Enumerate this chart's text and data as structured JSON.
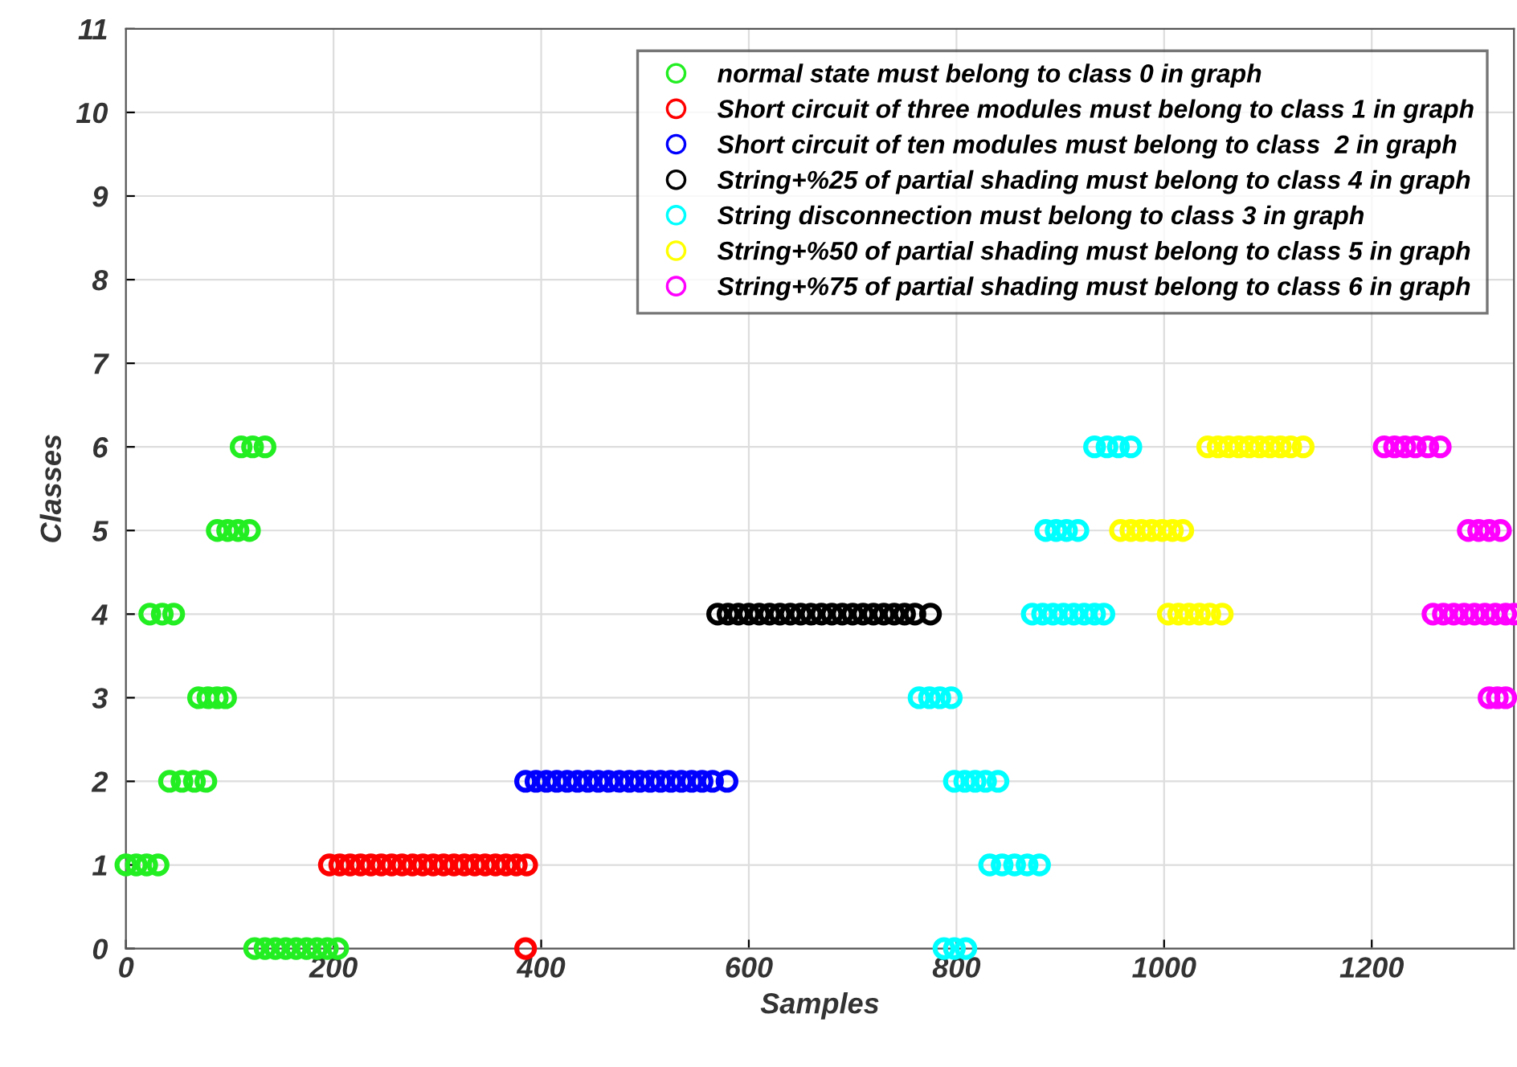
{
  "chart_data": {
    "type": "scatter",
    "xlabel": "Samples",
    "ylabel": "Classes",
    "xlim": [
      0,
      1337
    ],
    "ylim": [
      0,
      11
    ],
    "xticks": [
      0,
      200,
      400,
      600,
      800,
      1000,
      1200
    ],
    "yticks": [
      0,
      1,
      2,
      3,
      4,
      5,
      6,
      7,
      8,
      9,
      10,
      11
    ],
    "grid": true,
    "legend": "top right",
    "marker": "circle",
    "series": [
      {
        "name": "normal state must belong to class 0 in graph",
        "color": "#22ee22",
        "x": [
          0,
          10,
          20,
          31,
          42,
          54,
          66,
          77,
          70,
          79,
          88,
          96,
          23,
          35,
          46,
          88,
          98,
          108,
          119,
          111,
          122,
          134,
          124,
          134,
          144,
          154,
          164,
          174,
          184,
          194,
          204
        ],
        "values": [
          1,
          1,
          1,
          1,
          2,
          2,
          2,
          2,
          3,
          3,
          3,
          3,
          4,
          4,
          4,
          5,
          5,
          5,
          5,
          6,
          6,
          6,
          0,
          0,
          0,
          0,
          0,
          0,
          0,
          0,
          0
        ]
      },
      {
        "name": "Short circuit of three modules must belong to class 1 in graph",
        "color": "#ff0000",
        "x": [
          196,
          206,
          216,
          226,
          236,
          246,
          256,
          266,
          276,
          286,
          296,
          306,
          316,
          326,
          336,
          346,
          356,
          366,
          376,
          386,
          385
        ],
        "values": [
          1,
          1,
          1,
          1,
          1,
          1,
          1,
          1,
          1,
          1,
          1,
          1,
          1,
          1,
          1,
          1,
          1,
          1,
          1,
          1,
          0
        ]
      },
      {
        "name": "Short circuit of ten modules must belong to class  2 in graph",
        "color": "#0000ff",
        "x": [
          385,
          395,
          405,
          415,
          425,
          435,
          445,
          455,
          465,
          475,
          485,
          495,
          505,
          515,
          525,
          535,
          545,
          555,
          565,
          579
        ],
        "values": [
          2,
          2,
          2,
          2,
          2,
          2,
          2,
          2,
          2,
          2,
          2,
          2,
          2,
          2,
          2,
          2,
          2,
          2,
          2,
          2
        ]
      },
      {
        "name": "String+%25 of partial shading must belong to class 4 in graph",
        "color": "#000000",
        "x": [
          570,
          580,
          590,
          600,
          610,
          620,
          630,
          640,
          650,
          660,
          670,
          680,
          690,
          700,
          710,
          720,
          730,
          740,
          750,
          760,
          775
        ],
        "values": [
          4,
          4,
          4,
          4,
          4,
          4,
          4,
          4,
          4,
          4,
          4,
          4,
          4,
          4,
          4,
          4,
          4,
          4,
          4,
          4,
          4
        ]
      },
      {
        "name": "String disconnection must belong to class 3 in graph",
        "color": "#00ffff",
        "x": [
          764,
          774,
          784,
          795,
          788,
          798,
          809,
          798,
          808,
          818,
          828,
          840,
          832,
          844,
          856,
          868,
          880,
          873,
          883,
          893,
          903,
          913,
          923,
          933,
          942,
          886,
          896,
          906,
          917,
          933,
          945,
          956,
          968
        ],
        "values": [
          3,
          3,
          3,
          3,
          0,
          0,
          0,
          2,
          2,
          2,
          2,
          2,
          1,
          1,
          1,
          1,
          1,
          4,
          4,
          4,
          4,
          4,
          4,
          4,
          4,
          5,
          5,
          5,
          5,
          6,
          6,
          6,
          6
        ]
      },
      {
        "name": "String+%50 of partial shading must belong to class 5 in graph",
        "color": "#ffff00",
        "x": [
          958,
          968,
          978,
          988,
          998,
          1008,
          1018,
          1004,
          1014,
          1024,
          1034,
          1044,
          1056,
          1042,
          1052,
          1062,
          1072,
          1082,
          1092,
          1102,
          1112,
          1122,
          1134
        ],
        "values": [
          5,
          5,
          5,
          5,
          5,
          5,
          5,
          4,
          4,
          4,
          4,
          4,
          4,
          6,
          6,
          6,
          6,
          6,
          6,
          6,
          6,
          6,
          6
        ]
      },
      {
        "name": "String+%75 of partial shading must belong to class 6 in graph",
        "color": "#ff00ff",
        "x": [
          1212,
          1222,
          1232,
          1242,
          1254,
          1266,
          1293,
          1303,
          1313,
          1324,
          1259,
          1269,
          1279,
          1289,
          1299,
          1309,
          1319,
          1329,
          1337,
          1313,
          1321,
          1329
        ],
        "values": [
          6,
          6,
          6,
          6,
          6,
          6,
          5,
          5,
          5,
          5,
          4,
          4,
          4,
          4,
          4,
          4,
          4,
          4,
          4,
          3,
          3,
          3
        ]
      }
    ]
  }
}
